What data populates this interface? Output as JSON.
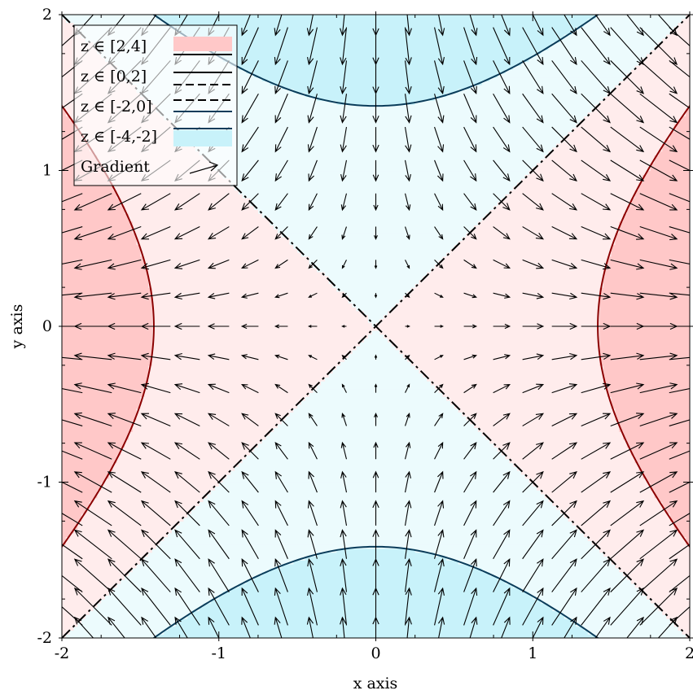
{
  "chart_data": {
    "type": "contour-vector",
    "function": "z = x^2 - y^2",
    "gradient_field": "(2x, -2y)",
    "xlabel": "x axis",
    "ylabel": "y axis",
    "xlim": [
      -2,
      2
    ],
    "ylim": [
      -2,
      2
    ],
    "x_ticks": [
      "-2",
      "-1",
      "0",
      "1",
      "2"
    ],
    "y_ticks": [
      "-2",
      "-1",
      "0",
      "1",
      "2"
    ],
    "x_tick_values": [
      -2,
      -1,
      0,
      1,
      2
    ],
    "y_tick_values": [
      -2,
      -1,
      0,
      1,
      2
    ],
    "contour_levels": [
      -2,
      0,
      2
    ],
    "bands": [
      {
        "label": "z ∈ [2,4]",
        "range": [
          2,
          4
        ],
        "fill": "#ffc8c8",
        "line": "#8b0000",
        "line_style": "solid"
      },
      {
        "label": "z ∈ [0,2]",
        "range": [
          0,
          2
        ],
        "fill": "#ffecec",
        "line": "#000000",
        "line_style": "solid"
      },
      {
        "label": "z ∈ [-2,0]",
        "range": [
          -2,
          0
        ],
        "fill": "#ecfbfd",
        "line": "#000000",
        "line_style": "dashed"
      },
      {
        "label": "z ∈ [-4,-2]",
        "range": [
          -4,
          -2
        ],
        "fill": "#c8f2fa",
        "line": "#0a3c5a",
        "line_style": "solid"
      }
    ],
    "legend": {
      "placement": "top-left",
      "entries": [
        "z ∈ [2,4]",
        "z ∈ [0,2]",
        "z ∈ [-2,0]",
        "z ∈ [-4,-2]",
        "Gradient"
      ]
    },
    "vector_grid": {
      "count_per_axis": 21,
      "from": -2,
      "to": 2
    },
    "grid": false
  }
}
